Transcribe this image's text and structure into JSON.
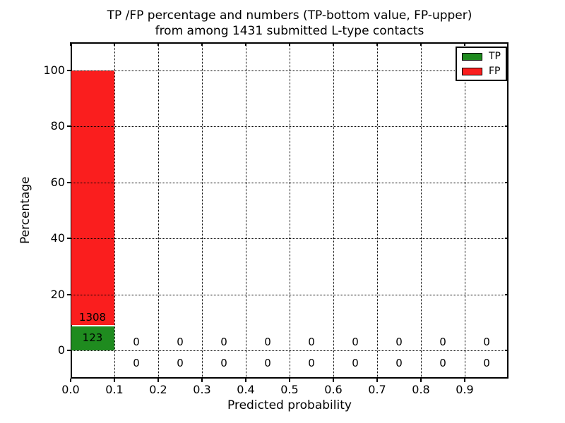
{
  "figure": {
    "title_line1": "TP /FP percentage and numbers (TP-bottom value, FP-upper)",
    "title_line2": "from among 1431 submitted L-type contacts",
    "total_submitted": 1431
  },
  "chart_data": {
    "type": "bar",
    "stacked": true,
    "title": "TP /FP percentage and numbers (TP-bottom value, FP-upper) from among 1431 submitted L-type contacts",
    "xlabel": "Predicted probability",
    "ylabel": "Percentage",
    "xlim": [
      0.0,
      1.0
    ],
    "ylim": [
      -10,
      110
    ],
    "grid": "dotted, both axes, drawn over bars",
    "legend_position": "upper right",
    "bin_width": 0.1,
    "bin_starts": [
      0.0,
      0.1,
      0.2,
      0.3,
      0.4,
      0.5,
      0.6,
      0.7,
      0.8,
      0.9
    ],
    "xticks": {
      "values": [
        0.0,
        0.1,
        0.2,
        0.3,
        0.4,
        0.5,
        0.6,
        0.7,
        0.8,
        0.9
      ],
      "labels": [
        "0.0",
        "0.1",
        "0.2",
        "0.3",
        "0.4",
        "0.5",
        "0.6",
        "0.7",
        "0.8",
        "0.9"
      ]
    },
    "yticks": {
      "values": [
        0,
        20,
        40,
        60,
        80,
        100
      ],
      "labels": [
        "0",
        "20",
        "40",
        "60",
        "80",
        "100"
      ]
    },
    "series": [
      {
        "name": "TP",
        "color": "#1f8b1f",
        "counts": [
          123,
          0,
          0,
          0,
          0,
          0,
          0,
          0,
          0,
          0
        ],
        "percent": [
          8.6,
          0,
          0,
          0,
          0,
          0,
          0,
          0,
          0,
          0
        ]
      },
      {
        "name": "FP",
        "color": "#fa1e1e",
        "counts": [
          1308,
          0,
          0,
          0,
          0,
          0,
          0,
          0,
          0,
          0
        ],
        "percent": [
          91.4,
          0,
          0,
          0,
          0,
          0,
          0,
          0,
          0,
          0
        ]
      }
    ],
    "value_labels": {
      "fp_text": [
        "1308",
        "0",
        "0",
        "0",
        "0",
        "0",
        "0",
        "0",
        "0",
        "0"
      ],
      "tp_text": [
        "123",
        "0",
        "0",
        "0",
        "0",
        "0",
        "0",
        "0",
        "0",
        "0"
      ],
      "fp_label_y_pct": [
        11.8,
        3,
        3,
        3,
        3,
        3,
        3,
        3,
        3,
        3
      ],
      "tp_label_y_pct": [
        4.6,
        -4.4,
        -4.4,
        -4.4,
        -4.4,
        -4.4,
        -4.4,
        -4.4,
        -4.4,
        -4.4
      ]
    },
    "legend": {
      "entries": [
        {
          "label": "TP",
          "color": "#1f8b1f"
        },
        {
          "label": "FP",
          "color": "#fa1e1e"
        }
      ]
    }
  }
}
